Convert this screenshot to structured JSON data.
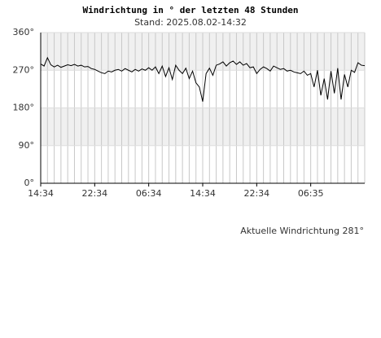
{
  "chart_data": {
    "type": "line",
    "title": "Windrichtung in ° der letzten 48 Stunden",
    "subtitle": "Stand: 2025.08.02-14:32",
    "annotation": "Aktuelle Windrichtung 281°",
    "x": [
      0,
      0.5,
      1,
      1.5,
      2,
      2.5,
      3,
      3.5,
      4,
      4.5,
      5,
      5.5,
      6,
      6.5,
      7,
      7.5,
      8,
      8.5,
      9,
      9.5,
      10,
      10.5,
      11,
      11.5,
      12,
      12.5,
      13,
      13.5,
      14,
      14.5,
      15,
      15.5,
      16,
      16.5,
      17,
      17.5,
      18,
      18.5,
      19,
      19.5,
      20,
      20.5,
      21,
      21.5,
      22,
      22.5,
      23,
      23.5,
      24,
      24.5,
      25,
      25.5,
      26,
      26.5,
      27,
      27.5,
      28,
      28.5,
      29,
      29.5,
      30,
      30.5,
      31,
      31.5,
      32,
      32.5,
      33,
      33.5,
      34,
      34.5,
      35,
      35.5,
      36,
      36.5,
      37,
      37.5,
      38,
      38.5,
      39,
      39.5,
      40,
      40.5,
      41,
      41.5,
      42,
      42.5,
      43,
      43.5,
      44,
      44.5,
      45,
      45.5,
      46,
      46.5,
      47,
      47.5,
      48
    ],
    "series": [
      {
        "name": "Windrichtung",
        "color": "#000000",
        "values": [
          285,
          280,
          300,
          283,
          278,
          282,
          277,
          280,
          283,
          281,
          284,
          280,
          282,
          278,
          279,
          274,
          272,
          268,
          264,
          262,
          268,
          266,
          270,
          272,
          268,
          274,
          270,
          266,
          272,
          268,
          273,
          270,
          276,
          270,
          278,
          262,
          280,
          255,
          276,
          248,
          282,
          270,
          262,
          275,
          250,
          268,
          240,
          230,
          195,
          262,
          275,
          258,
          282,
          285,
          290,
          280,
          288,
          292,
          284,
          290,
          282,
          286,
          276,
          278,
          262,
          272,
          278,
          274,
          268,
          280,
          276,
          272,
          274,
          268,
          270,
          266,
          264,
          262,
          268,
          258,
          262,
          230,
          270,
          210,
          250,
          200,
          268,
          215,
          275,
          200,
          260,
          230,
          270,
          265,
          288,
          282,
          281
        ]
      }
    ],
    "xlim": [
      0,
      48
    ],
    "xticks": [
      {
        "value": 0,
        "label": "14:34"
      },
      {
        "value": 8,
        "label": "22:34"
      },
      {
        "value": 16,
        "label": "06:34"
      },
      {
        "value": 24,
        "label": "14:34"
      },
      {
        "value": 32,
        "label": "22:34"
      },
      {
        "value": 40,
        "label": "06:35"
      }
    ],
    "ylim": [
      0,
      360
    ],
    "yticks": [
      {
        "value": 0,
        "label": "0°"
      },
      {
        "value": 90,
        "label": "90°"
      },
      {
        "value": 180,
        "label": "180°"
      },
      {
        "value": 270,
        "label": "270°"
      },
      {
        "value": 360,
        "label": "360°"
      }
    ],
    "grid": true
  }
}
